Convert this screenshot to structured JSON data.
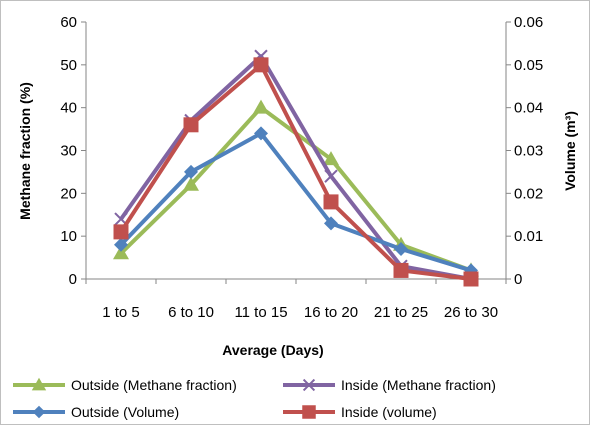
{
  "chart_data": {
    "type": "line",
    "title": "",
    "xlabel": "Average (Days)",
    "ylabel": "Methane fraction (%)",
    "y2label": "Volume (m³)",
    "categories": [
      "1 to 5",
      "6 to 10",
      "11 to 15",
      "16 to 20",
      "21 to 25",
      "26 to 30"
    ],
    "ylim": [
      0,
      60
    ],
    "y2lim": [
      0,
      0.06
    ],
    "yticks": [
      "0",
      "10",
      "20",
      "30",
      "40",
      "50",
      "60"
    ],
    "y2ticks": [
      "0",
      "0.01",
      "0.02",
      "0.03",
      "0.04",
      "0.05",
      "0.06"
    ],
    "grid": false,
    "legend_position": "bottom",
    "series": [
      {
        "name": "Outside (Methane fraction)",
        "axis": "left",
        "color": "#9bbb59",
        "marker": "triangle",
        "values": [
          6,
          22,
          40,
          28,
          8,
          2
        ]
      },
      {
        "name": "Inside (Methane fraction)",
        "axis": "left",
        "color": "#8064a2",
        "marker": "x",
        "values": [
          14,
          37,
          52,
          24,
          3,
          0
        ]
      },
      {
        "name": "Outside (Volume)",
        "axis": "right",
        "color": "#4f81bd",
        "marker": "diamond",
        "values": [
          0.008,
          0.025,
          0.034,
          0.013,
          0.007,
          0.002
        ]
      },
      {
        "name": "Inside (volume)",
        "axis": "right",
        "color": "#c0504d",
        "marker": "square",
        "values": [
          0.011,
          0.036,
          0.05,
          0.018,
          0.002,
          0
        ]
      }
    ]
  }
}
